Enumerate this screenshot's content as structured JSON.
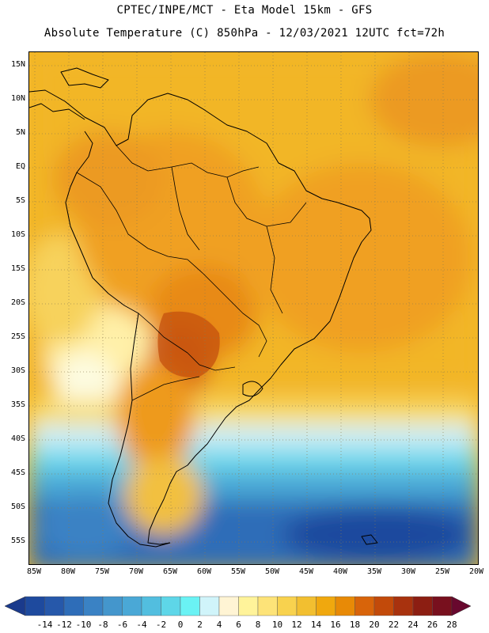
{
  "header": {
    "line1": "CPTEC/INPE/MCT -  Eta Model 15km - GFS",
    "line2": "Absolute Temperature (C) 850hPa - 12/03/2021 12UTC fct=72h"
  },
  "map": {
    "lat_labels": [
      "15N",
      "10N",
      "5N",
      "EQ",
      "5S",
      "10S",
      "15S",
      "20S",
      "25S",
      "30S",
      "35S",
      "40S",
      "45S",
      "50S",
      "55S"
    ],
    "lon_labels": [
      "85W",
      "80W",
      "75W",
      "70W",
      "65W",
      "60W",
      "55W",
      "50W",
      "45W",
      "40W",
      "35W",
      "30W",
      "25W",
      "20W"
    ],
    "colors": {
      "ocean_cold": "#1e52a3",
      "ocean_cool": "#3e8ed0",
      "ocean_mid": "#66cfea",
      "warm_base": "#f2b628",
      "warm_mid": "#f0a020",
      "hot": "#d96a14",
      "hottest": "#c4500e",
      "coast": "#000000"
    }
  },
  "legend": {
    "labels": [
      "-14",
      "-12",
      "-10",
      "-8",
      "-6",
      "-4",
      "-2",
      "0",
      "2",
      "4",
      "6",
      "8",
      "10",
      "12",
      "14",
      "16",
      "18",
      "20",
      "22",
      "24",
      "26",
      "28"
    ],
    "colors": [
      "#1a3a8c",
      "#1e4a9e",
      "#2658aa",
      "#2e6db8",
      "#3a82c4",
      "#4496cc",
      "#4aa8d6",
      "#52bedf",
      "#5ed6e8",
      "#6af2f4",
      "#d0f4fa",
      "#fff4d4",
      "#fff39a",
      "#fde378",
      "#f8d24e",
      "#f2bf30",
      "#f0a80e",
      "#e88a06",
      "#d8640a",
      "#c24a0a",
      "#a8320e",
      "#8c1e12",
      "#78101e",
      "#68082e"
    ]
  }
}
